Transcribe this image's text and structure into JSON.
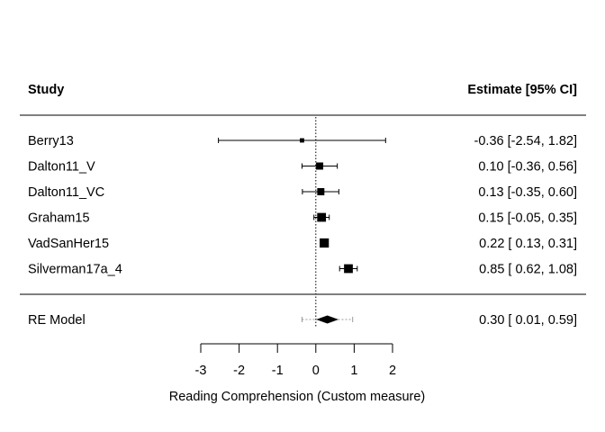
{
  "chart_data": {
    "type": "forest",
    "headers": {
      "left": "Study",
      "right": "Estimate [95% CI]"
    },
    "xlabel": "Reading Comprehension (Custom measure)",
    "xlim": [
      -3,
      2
    ],
    "xticks": [
      -3,
      -2,
      -1,
      0,
      1,
      2
    ],
    "reference_line": 0,
    "studies": [
      {
        "name": "Berry13",
        "estimate": -0.36,
        "lower": -2.54,
        "upper": 1.82,
        "weight": 0.2,
        "text": "-0.36 [-2.54, 1.82]"
      },
      {
        "name": "Dalton11_V",
        "estimate": 0.1,
        "lower": -0.36,
        "upper": 0.56,
        "weight": 0.55,
        "text": "0.10 [-0.36, 0.56]"
      },
      {
        "name": "Dalton11_VC",
        "estimate": 0.13,
        "lower": -0.35,
        "upper": 0.6,
        "weight": 0.55,
        "text": "0.13 [-0.35, 0.60]"
      },
      {
        "name": "Graham15",
        "estimate": 0.15,
        "lower": -0.05,
        "upper": 0.35,
        "weight": 0.75,
        "text": "0.15 [-0.05, 0.35]"
      },
      {
        "name": "VadSanHer15",
        "estimate": 0.22,
        "lower": 0.13,
        "upper": 0.31,
        "weight": 0.8,
        "text": "0.22 [ 0.13, 0.31]"
      },
      {
        "name": "Silverman17a_4",
        "estimate": 0.85,
        "lower": 0.62,
        "upper": 1.08,
        "weight": 0.75,
        "text": "0.85 [ 0.62, 1.08]"
      }
    ],
    "summary": {
      "name": "RE Model",
      "estimate": 0.3,
      "lower": 0.01,
      "upper": 0.59,
      "pi_lower": -0.36,
      "pi_upper": 0.96,
      "text": "0.30 [ 0.01, 0.59]"
    }
  }
}
